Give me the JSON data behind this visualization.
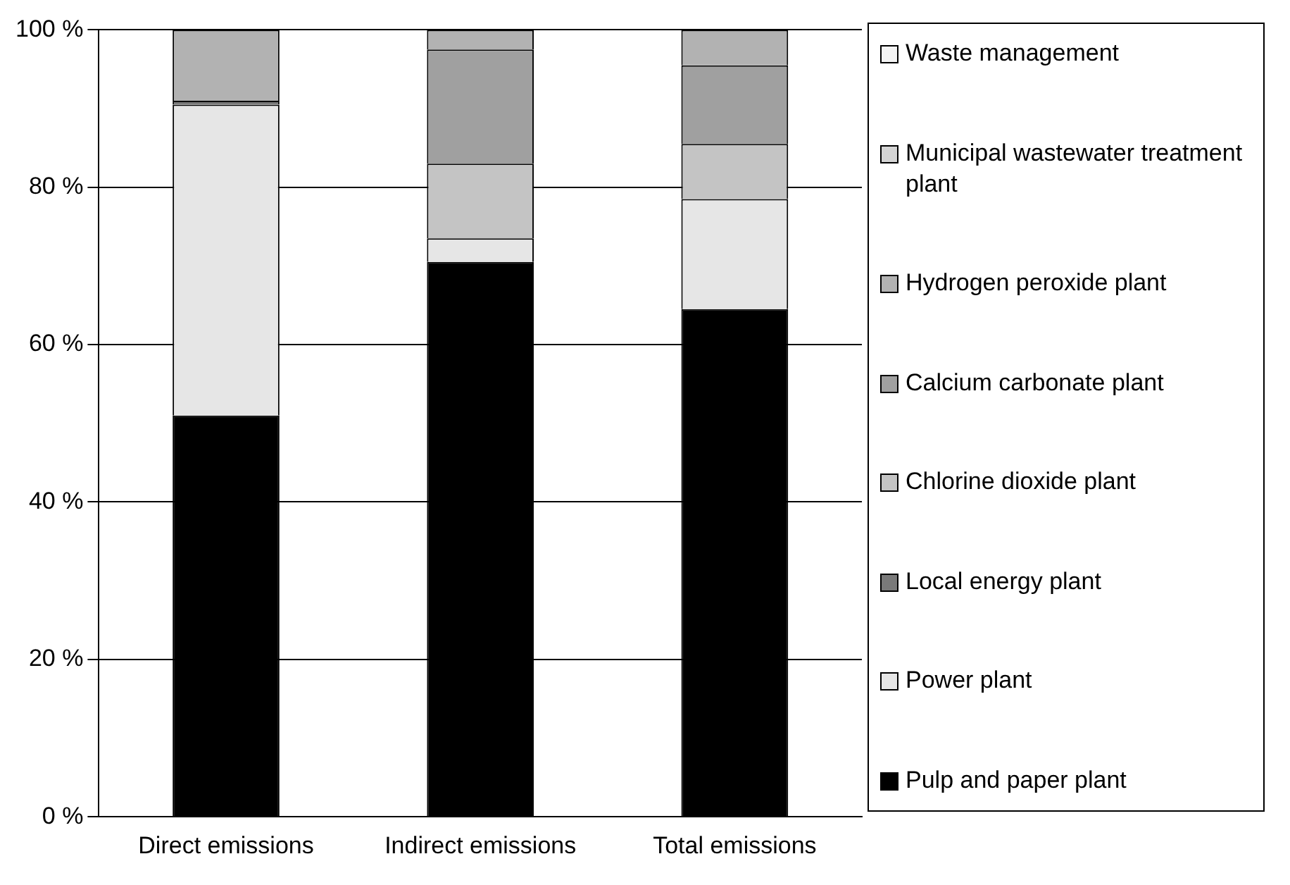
{
  "chart_data": {
    "type": "bar",
    "stacked": true,
    "categories": [
      "Direct emissions",
      "Indirect emissions",
      "Total emissions"
    ],
    "series": [
      {
        "name": "Pulp and paper plant",
        "color": "#000000",
        "values": [
          51,
          70.5,
          64.5
        ]
      },
      {
        "name": "Power plant",
        "color": "#e6e6e6",
        "values": [
          39.5,
          3,
          14
        ]
      },
      {
        "name": "Local energy plant",
        "color": "#7a7a7a",
        "values": [
          0.5,
          0,
          0
        ]
      },
      {
        "name": "Chlorine dioxide plant",
        "color": "#c4c4c4",
        "values": [
          0,
          9.5,
          7
        ]
      },
      {
        "name": "Calcium carbonate plant",
        "color": "#a0a0a0",
        "values": [
          0,
          14.5,
          10
        ]
      },
      {
        "name": "Hydrogen peroxide plant",
        "color": "#b2b2b2",
        "values": [
          9,
          2.5,
          4.5
        ]
      },
      {
        "name": "Municipal wastewater treatment plant",
        "color": "#d4d4d4",
        "values": [
          0,
          0,
          0
        ]
      },
      {
        "name": "Waste management",
        "color": "#f4f4f4",
        "values": [
          0,
          0,
          0
        ]
      }
    ],
    "ylim": [
      0,
      100
    ],
    "yticks": [
      {
        "value": 0,
        "label": "0 %"
      },
      {
        "value": 20,
        "label": "20 %"
      },
      {
        "value": 40,
        "label": "40 %"
      },
      {
        "value": 60,
        "label": "60 %"
      },
      {
        "value": 80,
        "label": "80 %"
      },
      {
        "value": 100,
        "label": "100 %"
      }
    ],
    "grid": "y",
    "legend": "right"
  }
}
